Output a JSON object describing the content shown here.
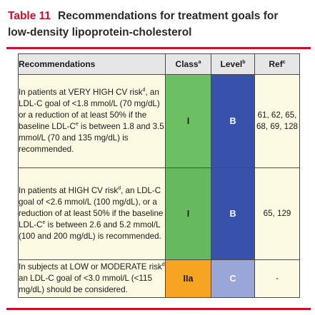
{
  "title": {
    "table_no": "Table 11",
    "line1": "Recommendations for treatment goals for",
    "line2": "low-density lipoprotein-cholesterol"
  },
  "header": {
    "recommendations": "Recommendations",
    "class": "Class",
    "class_sup": "a",
    "level": "Level",
    "level_sup": "b",
    "ref": "Ref",
    "ref_sup": "c"
  },
  "rows": [
    {
      "rec": {
        "p1": "In patients at VERY HIGH CV risk",
        "s1": "d",
        "p2": ", an LDL-C goal of <1.8 mmol/L (70 mg/dL) or a reduction of at least 50% if the baseline LDL-C",
        "s2": "e",
        "p3": " is between 1.8 and 3.5 mmol/L (70 and 135 mg/dL) is recommended."
      },
      "class": "I",
      "level": "B",
      "ref": "61, 62, 65, 68, 69, 128"
    },
    {
      "rec": {
        "p1": "In patients at HIGH CV risk",
        "s1": "d",
        "p2": ", an LDL-C goal of <2.6 mmol/L (100 mg/dL), or a reduction of at least 50% if the baseline LDL-C",
        "s2": "e",
        "p3": " is between 2.6 and 5.2 mmol/L (100 and 200 mg/dL) is recommended."
      },
      "class": "I",
      "level": "B",
      "ref": "65, 129"
    },
    {
      "rec": {
        "p1": "In subjects at LOW or MODERATE risk",
        "s1": "d",
        "p2": " an LDL-C goal of <3.0 mmol/L (<115 mg/dL) should be considered.",
        "s2": "",
        "p3": ""
      },
      "class": "IIa",
      "level": "C",
      "ref": "-"
    }
  ],
  "colors": {
    "title_red": "#c8102e",
    "class_I": "#6cbf63",
    "class_IIa": "#f7a423",
    "level_B": "#3852ab",
    "level_C": "#9aa6d8",
    "recommended_bg": "#fdfae3"
  }
}
